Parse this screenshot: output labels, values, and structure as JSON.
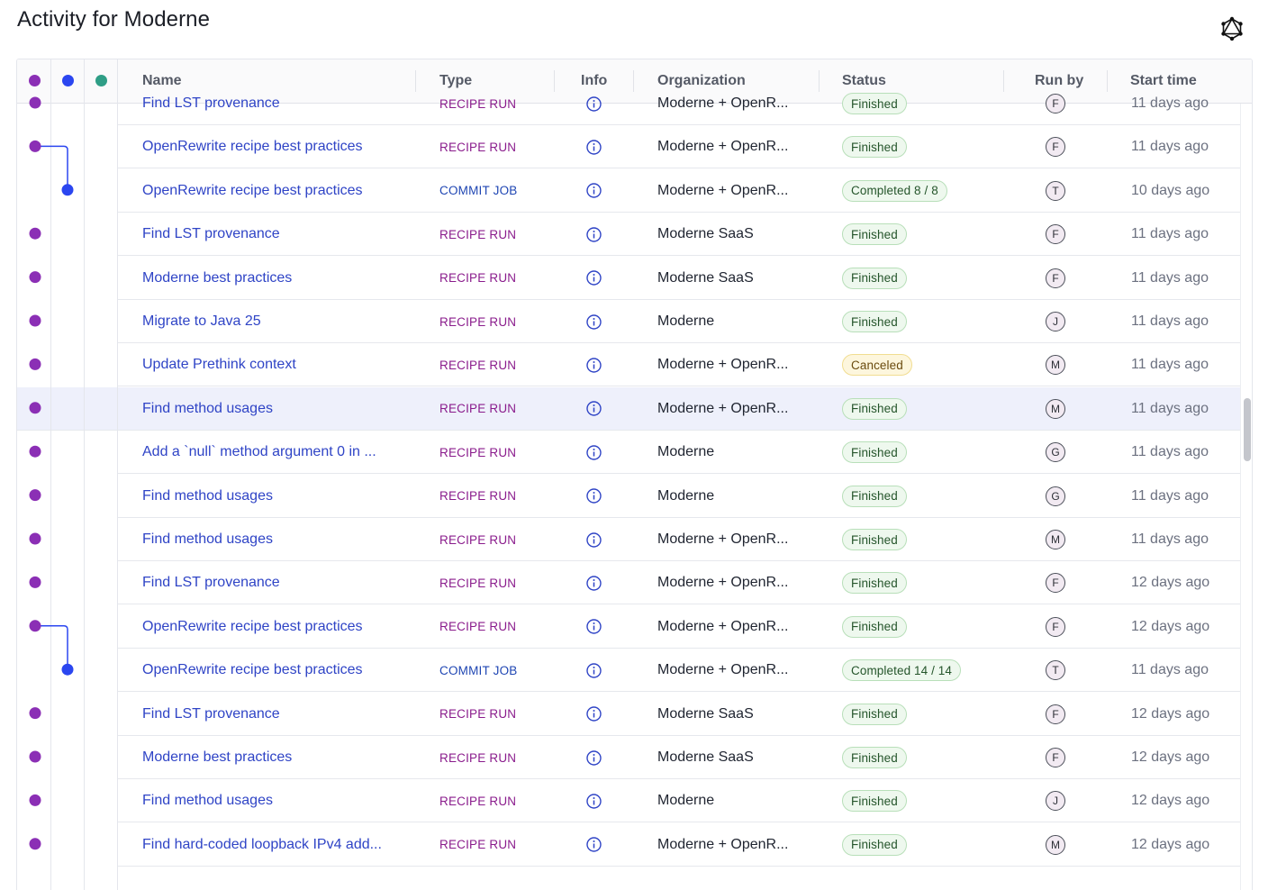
{
  "page": {
    "title": "Activity for Moderne"
  },
  "header": {
    "lane_colors": [
      "#8b2fb5",
      "#2b46f0",
      "#2f9e86"
    ],
    "columns": [
      "Name",
      "Type",
      "Info",
      "Organization",
      "Status",
      "Run by",
      "Start time"
    ]
  },
  "icons": {
    "graphql": "graphql-icon",
    "info": "info-circle-icon"
  },
  "colors": {
    "recipe_run": "#8a1c8c",
    "commit_job": "#1f46b3",
    "link": "#2f44c6",
    "finished_bg": "#eef8ee",
    "canceled_bg": "#fdf6dd"
  },
  "rows": [
    {
      "name": "Find LST provenance",
      "type": "RECIPE RUN",
      "org": "Moderne + OpenR...",
      "status": "Finished",
      "run_by": "F",
      "start": "11 days ago",
      "lane": 0
    },
    {
      "name": "OpenRewrite recipe best practices",
      "type": "RECIPE RUN",
      "org": "Moderne + OpenR...",
      "status": "Finished",
      "run_by": "F",
      "start": "11 days ago",
      "lane": 0
    },
    {
      "name": "OpenRewrite recipe best practices",
      "type": "COMMIT JOB",
      "org": "Moderne + OpenR...",
      "status": "Completed 8 / 8",
      "run_by": "T",
      "start": "10 days ago",
      "lane": 1
    },
    {
      "name": "Find LST provenance",
      "type": "RECIPE RUN",
      "org": "Moderne SaaS",
      "status": "Finished",
      "run_by": "F",
      "start": "11 days ago",
      "lane": 0
    },
    {
      "name": "Moderne best practices",
      "type": "RECIPE RUN",
      "org": "Moderne SaaS",
      "status": "Finished",
      "run_by": "F",
      "start": "11 days ago",
      "lane": 0
    },
    {
      "name": "Migrate to Java 25",
      "type": "RECIPE RUN",
      "org": "Moderne",
      "status": "Finished",
      "run_by": "J",
      "start": "11 days ago",
      "lane": 0
    },
    {
      "name": "Update Prethink context",
      "type": "RECIPE RUN",
      "org": "Moderne + OpenR...",
      "status": "Canceled",
      "run_by": "M",
      "start": "11 days ago",
      "lane": 0
    },
    {
      "name": "Find method usages",
      "type": "RECIPE RUN",
      "org": "Moderne + OpenR...",
      "status": "Finished",
      "run_by": "M",
      "start": "11 days ago",
      "lane": 0,
      "highlighted": true
    },
    {
      "name": "Add a `null` method argument 0 in ...",
      "type": "RECIPE RUN",
      "org": "Moderne",
      "status": "Finished",
      "run_by": "G",
      "start": "11 days ago",
      "lane": 0
    },
    {
      "name": "Find method usages",
      "type": "RECIPE RUN",
      "org": "Moderne",
      "status": "Finished",
      "run_by": "G",
      "start": "11 days ago",
      "lane": 0
    },
    {
      "name": "Find method usages",
      "type": "RECIPE RUN",
      "org": "Moderne + OpenR...",
      "status": "Finished",
      "run_by": "M",
      "start": "11 days ago",
      "lane": 0
    },
    {
      "name": "Find LST provenance",
      "type": "RECIPE RUN",
      "org": "Moderne + OpenR...",
      "status": "Finished",
      "run_by": "F",
      "start": "12 days ago",
      "lane": 0
    },
    {
      "name": "OpenRewrite recipe best practices",
      "type": "RECIPE RUN",
      "org": "Moderne + OpenR...",
      "status": "Finished",
      "run_by": "F",
      "start": "12 days ago",
      "lane": 0
    },
    {
      "name": "OpenRewrite recipe best practices",
      "type": "COMMIT JOB",
      "org": "Moderne + OpenR...",
      "status": "Completed 14 / 14",
      "run_by": "T",
      "start": "11 days ago",
      "lane": 1
    },
    {
      "name": "Find LST provenance",
      "type": "RECIPE RUN",
      "org": "Moderne SaaS",
      "status": "Finished",
      "run_by": "F",
      "start": "12 days ago",
      "lane": 0
    },
    {
      "name": "Moderne best practices",
      "type": "RECIPE RUN",
      "org": "Moderne SaaS",
      "status": "Finished",
      "run_by": "F",
      "start": "12 days ago",
      "lane": 0
    },
    {
      "name": "Find method usages",
      "type": "RECIPE RUN",
      "org": "Moderne",
      "status": "Finished",
      "run_by": "J",
      "start": "12 days ago",
      "lane": 0
    },
    {
      "name": "Find hard-coded loopback IPv4 add...",
      "type": "RECIPE RUN",
      "org": "Moderne + OpenR...",
      "status": "Finished",
      "run_by": "M",
      "start": "12 days ago",
      "lane": 0
    }
  ]
}
